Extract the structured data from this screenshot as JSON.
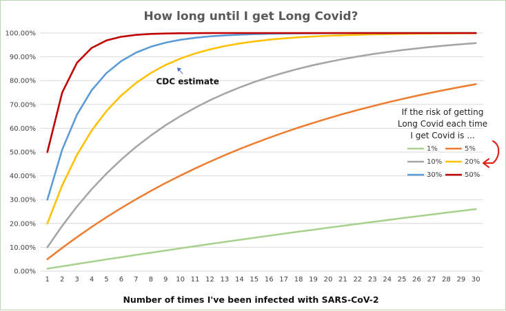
{
  "chart_data": {
    "type": "line",
    "title": "How long until I get Long Covid?",
    "xlabel": "Number of times I've been infected with SARS-CoV-2",
    "ylabel": "",
    "x": [
      1,
      2,
      3,
      4,
      5,
      6,
      7,
      8,
      9,
      10,
      11,
      12,
      13,
      14,
      15,
      16,
      17,
      18,
      19,
      20,
      21,
      22,
      23,
      24,
      25,
      26,
      27,
      28,
      29,
      30
    ],
    "ylim": [
      0,
      1
    ],
    "yticks": [
      "0.00%",
      "10.00%",
      "20.00%",
      "30.00%",
      "40.00%",
      "50.00%",
      "60.00%",
      "70.00%",
      "80.00%",
      "90.00%",
      "100.00%"
    ],
    "grid": true,
    "legend_title_lines": [
      "If the risk of getting",
      "Long Covid each time",
      "I get Covid is ..."
    ],
    "legend_position": "right",
    "annotation": {
      "text": "CDC estimate",
      "points_to": "20%",
      "x": 9
    },
    "series": [
      {
        "name": "1%",
        "color": "#a9d18e",
        "risk": 0.01,
        "values": [
          0.01,
          0.0199,
          0.0297,
          0.0394,
          0.049,
          0.0585,
          0.0679,
          0.0773,
          0.0865,
          0.0956,
          0.1047,
          0.1136,
          0.1225,
          0.1313,
          0.1399,
          0.1485,
          0.1571,
          0.1655,
          0.1738,
          0.1821,
          0.1903,
          0.1984,
          0.2064,
          0.2143,
          0.2222,
          0.23,
          0.2377,
          0.2453,
          0.2528,
          0.2603
        ]
      },
      {
        "name": "5%",
        "color": "#ed7d31",
        "risk": 0.05,
        "values": [
          0.05,
          0.0975,
          0.1426,
          0.1855,
          0.2262,
          0.2649,
          0.3017,
          0.3366,
          0.3698,
          0.4013,
          0.4312,
          0.4596,
          0.4867,
          0.5123,
          0.5367,
          0.5599,
          0.5819,
          0.6028,
          0.6226,
          0.6415,
          0.6594,
          0.6765,
          0.6926,
          0.708,
          0.7226,
          0.7365,
          0.7497,
          0.7622,
          0.7741,
          0.7854
        ]
      },
      {
        "name": "10%",
        "color": "#a5a5a5",
        "risk": 0.1,
        "values": [
          0.1,
          0.19,
          0.271,
          0.3439,
          0.4095,
          0.4686,
          0.5217,
          0.5695,
          0.6126,
          0.6513,
          0.6862,
          0.7176,
          0.7458,
          0.7712,
          0.7941,
          0.8147,
          0.8332,
          0.8499,
          0.8649,
          0.8784,
          0.8906,
          0.9015,
          0.9114,
          0.9202,
          0.9282,
          0.9354,
          0.9419,
          0.9477,
          0.9529,
          0.9576
        ]
      },
      {
        "name": "20%",
        "color": "#ffc000",
        "risk": 0.2,
        "values": [
          0.2,
          0.36,
          0.488,
          0.5904,
          0.6723,
          0.7379,
          0.7903,
          0.8322,
          0.8658,
          0.8926,
          0.9141,
          0.9313,
          0.945,
          0.956,
          0.9648,
          0.9719,
          0.9775,
          0.982,
          0.9856,
          0.9885,
          0.9908,
          0.9926,
          0.9941,
          0.9953,
          0.9962,
          0.997,
          0.9976,
          0.9981,
          0.9985,
          0.9988
        ]
      },
      {
        "name": "30%",
        "color": "#5b9bd5",
        "risk": 0.3,
        "values": [
          0.3,
          0.51,
          0.657,
          0.7599,
          0.8319,
          0.8824,
          0.9176,
          0.9424,
          0.9596,
          0.9718,
          0.9802,
          0.9862,
          0.9903,
          0.9932,
          0.9953,
          0.9967,
          0.9977,
          0.9984,
          0.9989,
          0.9992,
          0.9994,
          0.9996,
          0.9997,
          0.9998,
          0.9999,
          0.9999,
          0.9999,
          1.0,
          1.0,
          1.0
        ]
      },
      {
        "name": "50%",
        "color": "#c00000",
        "risk": 0.5,
        "values": [
          0.5,
          0.75,
          0.875,
          0.9375,
          0.9688,
          0.9844,
          0.9922,
          0.9961,
          0.998,
          0.999,
          0.9995,
          0.9998,
          0.9999,
          0.9999,
          1.0,
          1.0,
          1.0,
          1.0,
          1.0,
          1.0,
          1.0,
          1.0,
          1.0,
          1.0,
          1.0,
          1.0,
          1.0,
          1.0,
          1.0,
          1.0
        ]
      }
    ]
  }
}
